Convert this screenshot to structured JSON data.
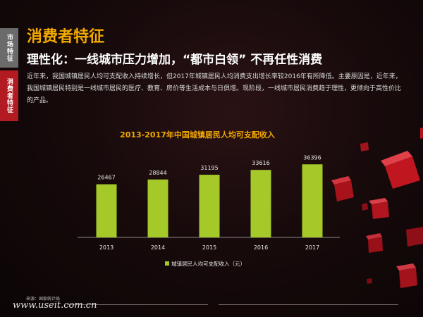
{
  "side_tabs": [
    {
      "label": "市场特征",
      "active": false
    },
    {
      "label": "消费者特征",
      "active": true
    }
  ],
  "header": {
    "title": "消费者特征",
    "subtitle": "理性化：一线城市压力增加，“都市白领” 不再任性消费"
  },
  "description": "近年来，我国城镇居民人均可支配收入持续增长，但2017年城镇居民人均消费支出增长率较2016年有所降低。主要原因是，近年来，我国城镇居民特别是一线城市居民的医疗、教育、房价等生活成本与日俱增。现阶段，一线城市居民消费趋于理性，更倾向于高性价比的产品。",
  "colors": {
    "accent": "#f2a900",
    "bar": "#a5c928",
    "active_tab": "#b31b22",
    "inactive_tab": "#6b6b6b"
  },
  "chart_data": {
    "type": "bar",
    "title": "2013-2017年中国城镇居民人均可支配收入",
    "categories": [
      "2013",
      "2014",
      "2015",
      "2016",
      "2017"
    ],
    "series": [
      {
        "name": "城镇居民人均可支配收入（元）",
        "values": [
          26467,
          28844,
          31195,
          33616,
          36396
        ]
      }
    ],
    "ylim": [
      0,
      40000
    ],
    "grid": false,
    "legend": "bottom"
  },
  "footer": {
    "source": "来源：国家统计局",
    "watermark": "www.useit.com.cn"
  }
}
